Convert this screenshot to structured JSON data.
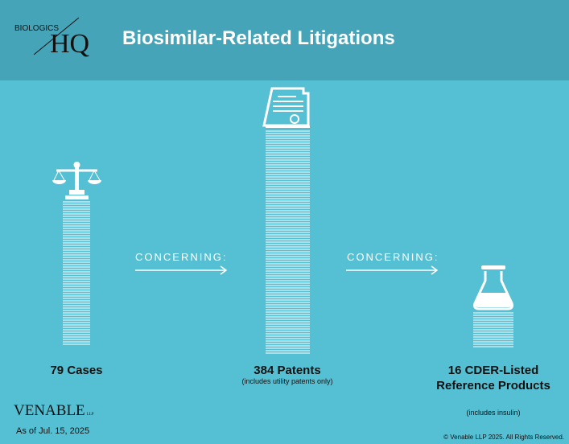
{
  "header": {
    "brand_top": "BIOLOGICS",
    "brand_hq": "HQ",
    "title": "Biosimilar-Related Litigations"
  },
  "items": [
    {
      "label": "79 Cases"
    },
    {
      "label": "384 Patents",
      "note": "(includes utility patents only)"
    },
    {
      "label": "16 CDER-Listed Reference Products",
      "note": "(includes insulin)"
    }
  ],
  "connectors": [
    "CONCERNING:",
    "CONCERNING:"
  ],
  "footer": {
    "firm": "VENABLE",
    "firm_suffix": "LLP",
    "date": "As of Jul. 15, 2025",
    "copyright": "© Venable LLP 2025. All Rights Reserved."
  }
}
